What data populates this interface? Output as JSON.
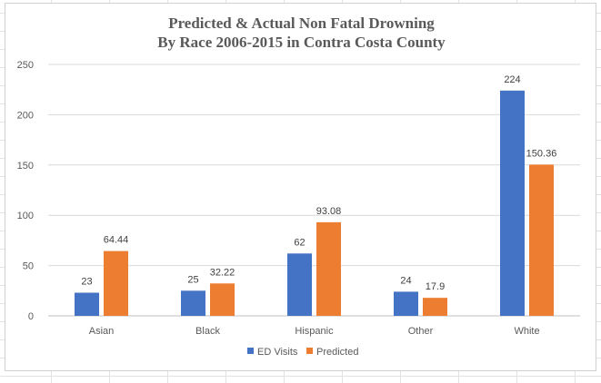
{
  "chart_data": {
    "type": "bar",
    "title_line1": "Predicted & Actual Non Fatal Drowning",
    "title_line2": "By Race 2006-2015 in Contra Costa County",
    "categories": [
      "Asian",
      "Black",
      "Hispanic",
      "Other",
      "White"
    ],
    "series": [
      {
        "name": "ED Visits",
        "color": "#4472c4",
        "values": [
          23,
          25,
          62,
          24,
          224
        ],
        "labels": [
          "23",
          "25",
          "62",
          "24",
          "224"
        ]
      },
      {
        "name": "Predicted",
        "color": "#ed7d31",
        "values": [
          64.44,
          32.22,
          93.08,
          17.9,
          150.36
        ],
        "labels": [
          "64.44",
          "32.22",
          "93.08",
          "17.9",
          "150.36"
        ]
      }
    ],
    "y_ticks": [
      0,
      50,
      100,
      150,
      200,
      250
    ],
    "ylim": [
      0,
      250
    ],
    "grid": true,
    "legend_position": "bottom"
  }
}
